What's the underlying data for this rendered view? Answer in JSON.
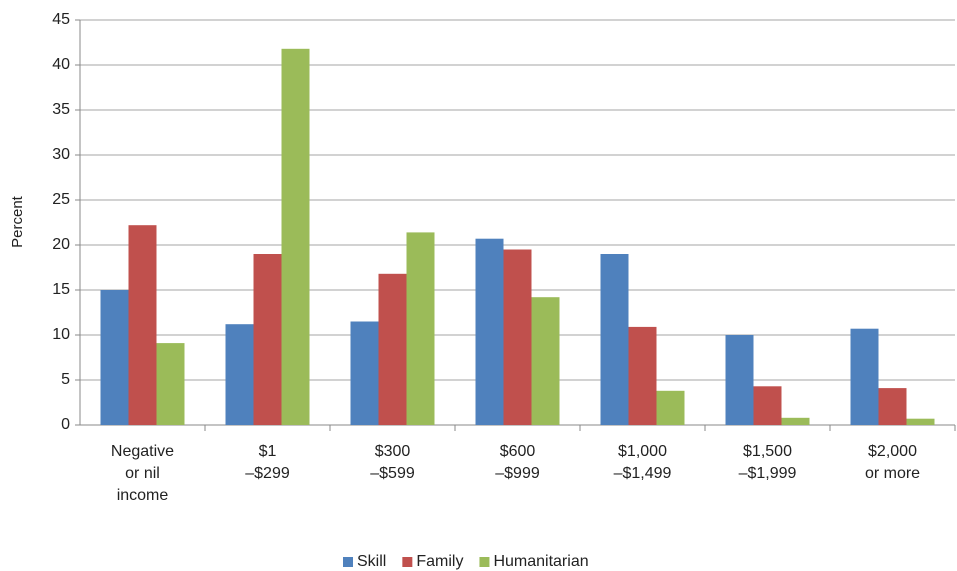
{
  "chart_data": {
    "type": "bar",
    "y_label": "Percent",
    "categories": [
      "Negative\nor nil\nincome",
      "$1\n–$299",
      "$300\n–$599",
      "$600\n–$999",
      "$1,000\n–$1,499",
      "$1,500\n–$1,999",
      "$2,000\nor more"
    ],
    "series": [
      {
        "name": "Skill",
        "color": "#4f81bd",
        "values": [
          15.0,
          11.2,
          11.5,
          20.7,
          19.0,
          10.0,
          10.7
        ]
      },
      {
        "name": "Family",
        "color": "#c0504d",
        "values": [
          22.2,
          19.0,
          16.8,
          19.5,
          10.9,
          4.3,
          4.1
        ]
      },
      {
        "name": "Humanitarian",
        "color": "#9bbb59",
        "values": [
          9.1,
          41.8,
          21.4,
          14.2,
          3.8,
          0.8,
          0.7
        ]
      }
    ],
    "ylim": [
      0,
      45
    ],
    "yticks": [
      0,
      5,
      10,
      15,
      20,
      25,
      30,
      35,
      40,
      45
    ],
    "grid": true,
    "legend": "bottom"
  }
}
